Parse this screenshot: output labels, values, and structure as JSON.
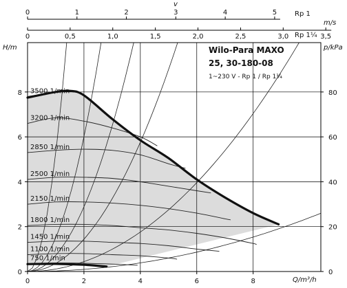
{
  "chart_data": {
    "type": "line",
    "title": "Wilo-Para MAXO",
    "model": "25, 30-180-08",
    "supply": "1~230 V - Rp 1 / Rp 1¼",
    "xlabel": "Q/m³/h",
    "ylabel_left": "H/m",
    "ylabel_right": "p/kPa",
    "top_axis_title": "v",
    "top_axis_units": "m/s",
    "top_axis_1_name": "Rp 1",
    "top_axis_2_name": "Rp 1¼",
    "xlim": [
      0,
      10.4
    ],
    "ylim": [
      0,
      10.2
    ],
    "x_ticks": [
      "0",
      "2",
      "4",
      "6",
      "8"
    ],
    "y_ticks": [
      "0",
      "2",
      "4",
      "6",
      "8"
    ],
    "kpa_ticks": [
      "0",
      "20",
      "40",
      "60",
      "80"
    ],
    "top_axis_1": {
      "ticks": [
        "0",
        "1",
        "2",
        "3",
        "4",
        "5"
      ]
    },
    "top_axis_2": {
      "ticks": [
        "0",
        "0,5",
        "1,0",
        "1,5",
        "2,0",
        "2,5",
        "3,0",
        "3,5"
      ]
    },
    "grid": true,
    "max_curve": {
      "x": [
        0,
        0.5,
        1.0,
        1.5,
        2.0,
        3.0,
        4.0,
        5.0,
        6.0,
        7.0,
        8.0,
        8.9
      ],
      "y": [
        7.75,
        7.88,
        8.0,
        8.05,
        7.85,
        6.8,
        5.85,
        5.05,
        4.1,
        3.3,
        2.6,
        2.1
      ]
    },
    "speed_curves": [
      {
        "label": "3500 1/min",
        "x": [
          0,
          1.5,
          2.0
        ],
        "y": [
          7.8,
          8.05,
          7.85
        ]
      },
      {
        "label": "3200 1/min",
        "x": [
          0,
          1.0,
          2.0,
          3.0,
          4.0,
          4.6
        ],
        "y": [
          6.6,
          6.85,
          6.7,
          6.4,
          6.0,
          5.6
        ]
      },
      {
        "label": "2850 1/min",
        "x": [
          0,
          1.0,
          2.0,
          3.0,
          4.0,
          5.0,
          5.6
        ],
        "y": [
          5.3,
          5.4,
          5.45,
          5.4,
          5.2,
          4.8,
          4.6
        ]
      },
      {
        "label": "2500 1/min",
        "x": [
          0,
          1.0,
          2.0,
          3.0,
          4.0,
          5.0,
          6.0,
          6.5
        ],
        "y": [
          4.1,
          4.2,
          4.2,
          4.15,
          4.0,
          3.8,
          3.6,
          3.5
        ]
      },
      {
        "label": "2150 1/min",
        "x": [
          0,
          1.0,
          2.0,
          3.0,
          4.0,
          5.0,
          6.0,
          7.0,
          7.2
        ],
        "y": [
          3.0,
          3.1,
          3.1,
          3.05,
          2.95,
          2.8,
          2.6,
          2.35,
          2.3
        ]
      },
      {
        "label": "1800 1/min",
        "x": [
          0,
          1.0,
          2.0,
          3.0,
          4.0,
          5.0,
          6.0,
          7.0,
          8.0,
          8.1
        ],
        "y": [
          2.05,
          2.1,
          2.1,
          2.05,
          1.95,
          1.85,
          1.7,
          1.5,
          1.25,
          1.2
        ]
      },
      {
        "label": "1450 1/min",
        "x": [
          0,
          1.0,
          2.0,
          3.0,
          4.0,
          5.0,
          6.0,
          6.8
        ],
        "y": [
          1.3,
          1.35,
          1.35,
          1.3,
          1.25,
          1.15,
          1.0,
          0.9
        ]
      },
      {
        "label": "1100 1/min",
        "x": [
          0,
          1.0,
          2.0,
          3.0,
          4.0,
          5.0,
          5.3
        ],
        "y": [
          0.75,
          0.8,
          0.8,
          0.75,
          0.7,
          0.6,
          0.55
        ]
      },
      {
        "label": "750 1/min",
        "x": [
          0,
          1.0,
          2.0,
          3.0,
          3.9
        ],
        "y": [
          0.35,
          0.38,
          0.37,
          0.33,
          0.28
        ]
      }
    ],
    "min_curve": {
      "x": [
        0,
        1.0,
        2.0,
        2.8
      ],
      "y": [
        0.33,
        0.34,
        0.3,
        0.22
      ]
    },
    "system_curve_k": [
      5.3,
      1.5,
      0.72,
      0.36,
      0.11,
      0.024
    ]
  }
}
